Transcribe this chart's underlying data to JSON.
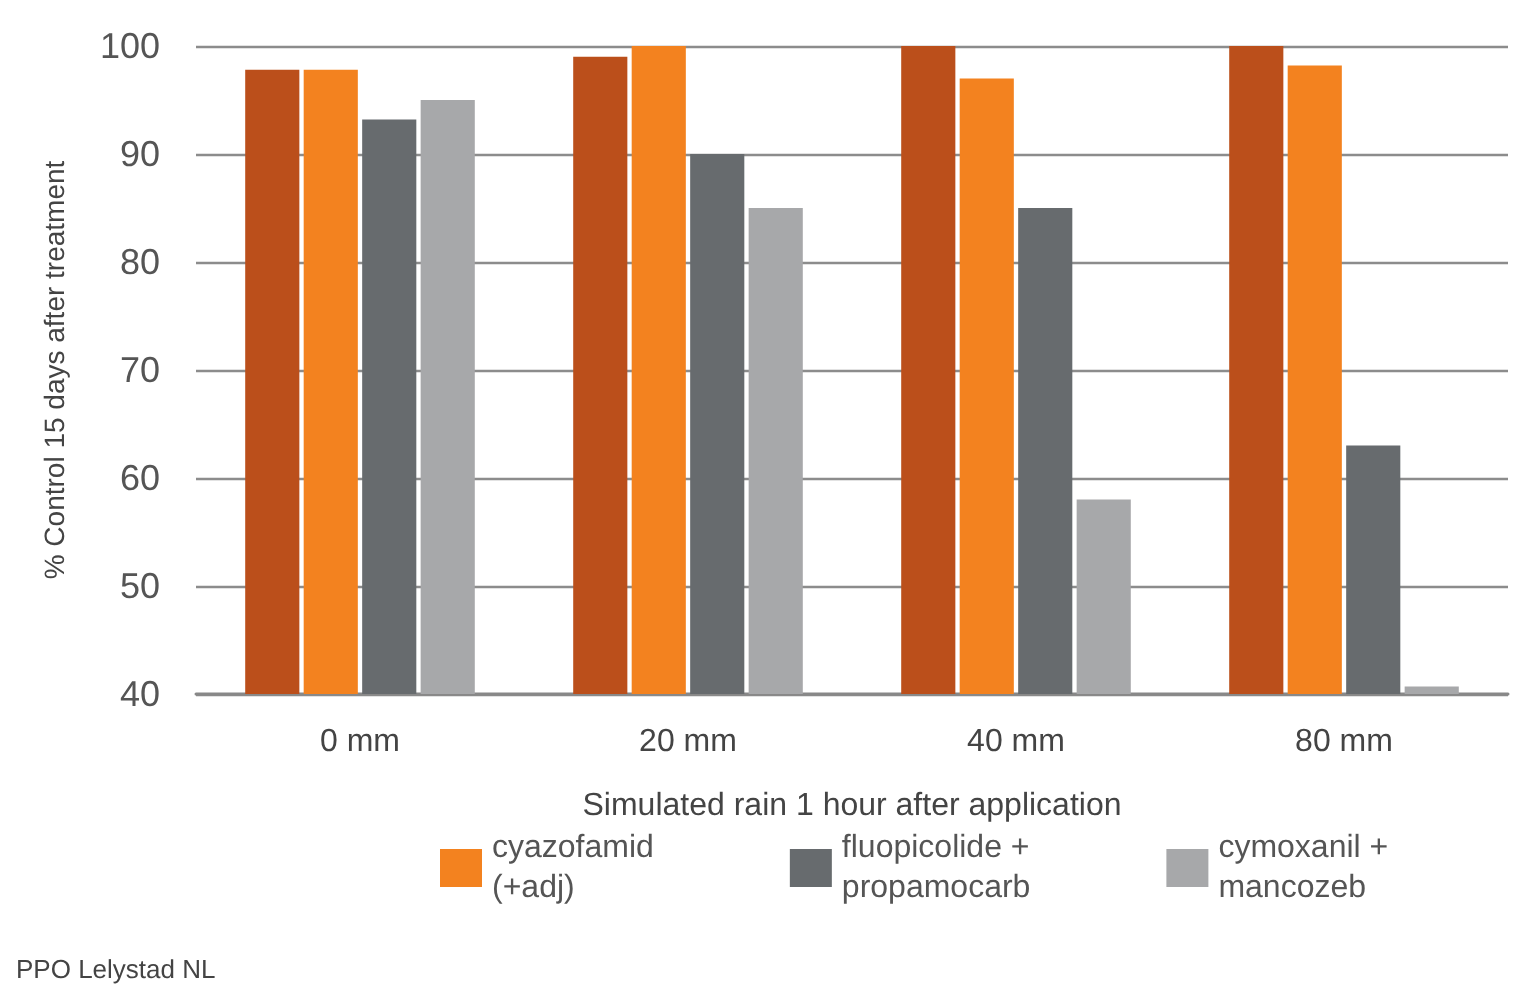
{
  "chart_data": {
    "type": "bar",
    "xlabel": "Simulated rain 1 hour after application",
    "ylabel": "% Control 15 days after treatment",
    "categories": [
      "0 mm",
      "20 mm",
      "40 mm",
      "80 mm"
    ],
    "series": [
      {
        "color": "#bb4f1b",
        "values": [
          97.8,
          99,
          100,
          100
        ]
      },
      {
        "name": "cyazofamid\n(+adj)",
        "color": "#f3821f",
        "values": [
          97.8,
          100,
          97,
          98.2
        ]
      },
      {
        "name": "fluopicolide +\npropamocarb",
        "color": "#676b6e",
        "values": [
          93.2,
          90,
          85,
          63
        ]
      },
      {
        "name": "cymoxanil +\nmancozeb",
        "color": "#a7a8aa",
        "values": [
          95,
          85,
          58,
          40.7
        ]
      }
    ],
    "ylim": [
      40,
      100
    ],
    "yticks": [
      40,
      50,
      60,
      70,
      80,
      90,
      100
    ],
    "grid": "y",
    "legend": "bottom",
    "annotations": [
      "PPO Lelystad NL"
    ]
  }
}
